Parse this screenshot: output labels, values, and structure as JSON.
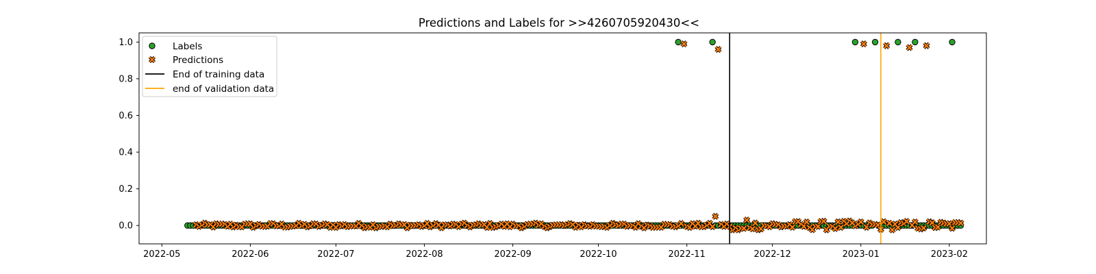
{
  "chart_data": {
    "type": "scatter",
    "title": "Predictions and Labels for >>4260705920430<<",
    "xlabel": "",
    "ylabel": "",
    "x_axis_type": "date",
    "xlim": [
      "2022-04-23",
      "2023-02-14"
    ],
    "ylim": [
      -0.1,
      1.05
    ],
    "x_ticks": [
      "2022-05-01",
      "2022-06-01",
      "2022-07-01",
      "2022-08-01",
      "2022-09-01",
      "2022-10-01",
      "2022-11-01",
      "2022-12-01",
      "2023-01-01",
      "2023-02-01"
    ],
    "x_tick_labels": [
      "2022-05",
      "2022-06",
      "2022-07",
      "2022-08",
      "2022-09",
      "2022-10",
      "2022-11",
      "2022-12",
      "2023-01",
      "2023-02"
    ],
    "y_ticks": [
      0.0,
      0.2,
      0.4,
      0.6,
      0.8,
      1.0
    ],
    "y_tick_labels": [
      "0.0",
      "0.2",
      "0.4",
      "0.6",
      "0.8",
      "1.0"
    ],
    "grid": false,
    "legend_position": "top-left",
    "date_range": [
      "2022-05-10",
      "2023-02-05"
    ],
    "series": [
      {
        "name": "Labels",
        "kind": "scatter",
        "marker": "circle",
        "color": "#2ca02c",
        "edge_color": "#000000",
        "ones_dates": [
          "2022-10-29",
          "2022-11-10",
          "2022-12-30",
          "2023-01-06",
          "2023-01-14",
          "2023-01-20",
          "2023-02-02"
        ]
      },
      {
        "name": "Predictions",
        "kind": "scatter",
        "marker": "x",
        "color": "#ff7f0e",
        "edge_color": "#000000",
        "high_points": [
          {
            "x": "2022-10-31",
            "y": 0.99
          },
          {
            "x": "2022-11-12",
            "y": 0.96
          },
          {
            "x": "2022-11-11",
            "y": 0.05
          },
          {
            "x": "2022-11-22",
            "y": 0.03
          },
          {
            "x": "2023-01-02",
            "y": 0.99
          },
          {
            "x": "2023-01-10",
            "y": 0.98
          },
          {
            "x": "2023-01-18",
            "y": 0.97
          },
          {
            "x": "2023-01-24",
            "y": 0.98
          }
        ]
      }
    ],
    "vertical_lines": [
      {
        "name": "End of training data",
        "x": "2022-11-16",
        "color": "#000000"
      },
      {
        "name": "end of validation data",
        "x": "2023-01-08",
        "color": "#ffa500"
      }
    ]
  }
}
